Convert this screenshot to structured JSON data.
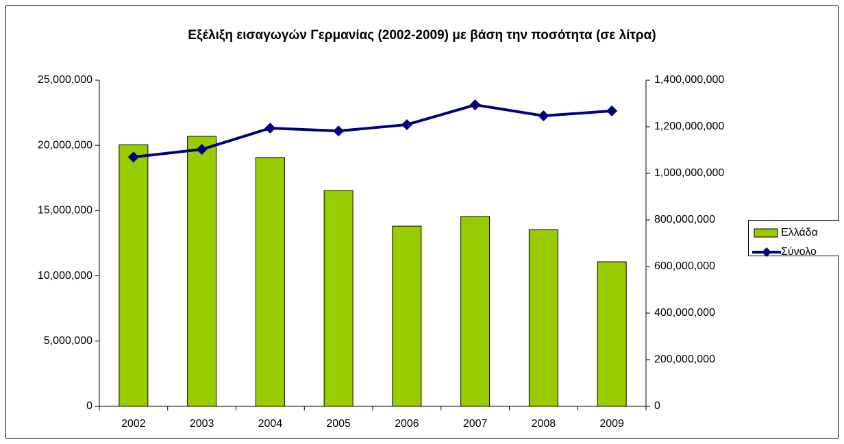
{
  "chart_data": {
    "type": "bar-line",
    "title": "Εξέλιξη εισαγωγών Γερμανίας (2002-2009) με βάση την ποσότητα (σε λίτρα)",
    "categories": [
      "2002",
      "2003",
      "2004",
      "2005",
      "2006",
      "2007",
      "2008",
      "2009"
    ],
    "series": [
      {
        "name": "Ελλάδα",
        "type": "bar",
        "color": "#99cc00",
        "values": [
          20050000,
          20700000,
          19070000,
          16540000,
          13810000,
          14550000,
          13550000,
          11080000
        ]
      },
      {
        "name": "Σύνολο",
        "type": "line",
        "axis": "y2",
        "color": "#000080",
        "values": [
          1070000000,
          1103000000,
          1194000000,
          1182000000,
          1209000000,
          1294000000,
          1247000000,
          1268000000
        ]
      }
    ],
    "ylim": [
      0,
      25000000
    ],
    "yticks": [
      0,
      {
        "value": 5000000,
        "label": "5,000,000"
      },
      {
        "value": 10000000,
        "label": "10,000,000"
      },
      {
        "value": 15000000,
        "label": "15,000,000"
      },
      {
        "value": 20000000,
        "label": "20,000,000"
      },
      {
        "value": 25000000,
        "label": "25,000,000"
      }
    ],
    "y2lim": [
      0,
      1400000000
    ],
    "y2ticks": [
      0,
      {
        "value": 200000000,
        "label": "200,000,000"
      },
      {
        "value": 400000000,
        "label": "400,000,000"
      },
      {
        "value": 600000000,
        "label": "600,000,000"
      },
      {
        "value": 800000000,
        "label": "800,000,000"
      },
      {
        "value": 1000000000,
        "label": "1,000,000,000"
      },
      {
        "value": 1200000000,
        "label": "1,200,000,000"
      },
      {
        "value": 1400000000,
        "label": "1,400,000,000"
      }
    ],
    "grid": false,
    "legend": "right"
  }
}
